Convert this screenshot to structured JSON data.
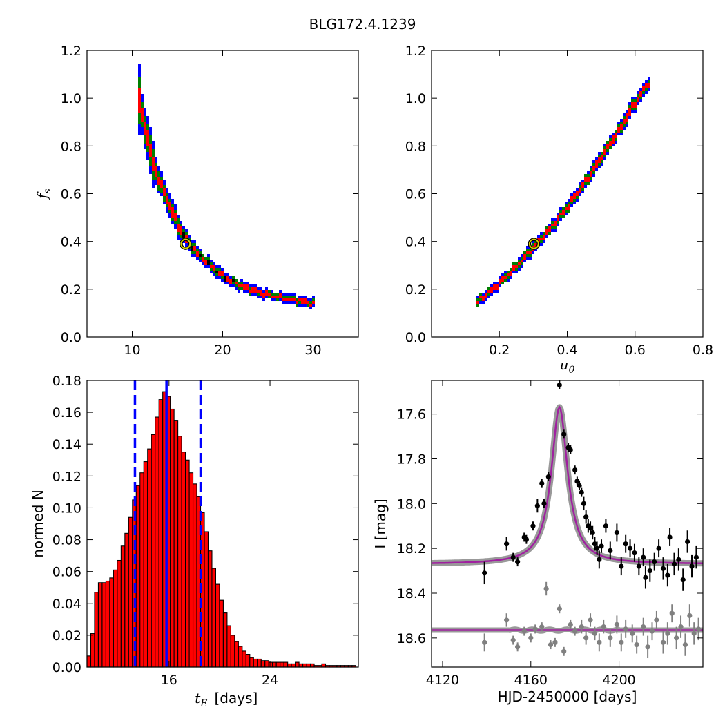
{
  "figure": {
    "title": "BLG172.4.1239"
  },
  "chart_data": [
    {
      "id": "tE_fs",
      "type": "heatmap",
      "xlim": [
        5,
        35
      ],
      "ylim": [
        0,
        1.2
      ],
      "xticks": [
        10,
        20,
        30
      ],
      "yticks": [
        0.0,
        0.2,
        0.4,
        0.6,
        0.8,
        1.0,
        1.2
      ],
      "xlabel": "",
      "ylabel": "f_s",
      "contour_colors": {
        "outer": "#0000ff",
        "middle": "#008000",
        "inner": "#ff0000",
        "core": "#000000"
      },
      "band_centerline": [
        [
          10.4,
          1.06
        ],
        [
          10.8,
          0.95
        ],
        [
          11.5,
          0.84
        ],
        [
          12.2,
          0.72
        ],
        [
          13.0,
          0.64
        ],
        [
          14.0,
          0.55
        ],
        [
          15.0,
          0.46
        ],
        [
          16.0,
          0.4
        ],
        [
          17.0,
          0.35
        ],
        [
          18.5,
          0.3
        ],
        [
          20.0,
          0.25
        ],
        [
          22.0,
          0.21
        ],
        [
          24.5,
          0.18
        ],
        [
          27.0,
          0.16
        ],
        [
          30.0,
          0.14
        ]
      ],
      "best_fit": {
        "x": 15.9,
        "y": 0.39
      }
    },
    {
      "id": "u0_fs",
      "type": "heatmap",
      "xlim": [
        0,
        0.8
      ],
      "ylim": [
        0,
        1.2
      ],
      "xticks": [
        0.2,
        0.4,
        0.6,
        0.8
      ],
      "yticks": [
        0.0,
        0.2,
        0.4,
        0.6,
        0.8,
        1.0,
        1.2
      ],
      "xlabel": "u_0",
      "ylabel": "",
      "contour_colors": {
        "outer": "#0000ff",
        "middle": "#008000",
        "inner": "#ff0000",
        "core": "#000000"
      },
      "band_centerline": [
        [
          0.125,
          0.14
        ],
        [
          0.16,
          0.18
        ],
        [
          0.2,
          0.23
        ],
        [
          0.25,
          0.3
        ],
        [
          0.3,
          0.38
        ],
        [
          0.35,
          0.46
        ],
        [
          0.4,
          0.55
        ],
        [
          0.45,
          0.65
        ],
        [
          0.5,
          0.76
        ],
        [
          0.55,
          0.87
        ],
        [
          0.6,
          0.99
        ],
        [
          0.64,
          1.07
        ]
      ],
      "best_fit": {
        "x": 0.302,
        "y": 0.39
      }
    },
    {
      "id": "tE_hist",
      "type": "bar",
      "xlim": [
        9.5,
        31.0
      ],
      "ylim": [
        0,
        0.18
      ],
      "xticks": [
        16,
        24
      ],
      "yticks": [
        0.0,
        0.02,
        0.04,
        0.06,
        0.08,
        0.1,
        0.12,
        0.14,
        0.16,
        0.18
      ],
      "xlabel_math": "t_E",
      "xlabel": "[days]",
      "ylabel": "normed N",
      "bar_color": "#ff0000",
      "bin_start": 9.5,
      "bin_width": 0.3,
      "values": [
        0.007,
        0.021,
        0.047,
        0.053,
        0.053,
        0.054,
        0.056,
        0.061,
        0.067,
        0.076,
        0.084,
        0.094,
        0.105,
        0.114,
        0.122,
        0.129,
        0.137,
        0.146,
        0.157,
        0.168,
        0.173,
        0.17,
        0.162,
        0.155,
        0.145,
        0.135,
        0.13,
        0.122,
        0.115,
        0.107,
        0.097,
        0.085,
        0.073,
        0.062,
        0.052,
        0.042,
        0.034,
        0.026,
        0.02,
        0.016,
        0.013,
        0.01,
        0.008,
        0.006,
        0.005,
        0.005,
        0.004,
        0.004,
        0.003,
        0.003,
        0.003,
        0.003,
        0.003,
        0.002,
        0.002,
        0.003,
        0.002,
        0.002,
        0.002,
        0.002,
        0.001,
        0.001,
        0.002,
        0.001,
        0.001,
        0.001,
        0.001,
        0.001,
        0.001,
        0.001,
        0.001
      ],
      "vlines": [
        {
          "x": 15.8,
          "style": "solid",
          "color": "#0000ff"
        },
        {
          "x": 13.3,
          "style": "dashed",
          "color": "#0000ff"
        },
        {
          "x": 18.5,
          "style": "dashed",
          "color": "#0000ff"
        }
      ]
    },
    {
      "id": "lightcurve",
      "type": "scatter",
      "xlim": [
        4115,
        4238
      ],
      "ylim": [
        18.73,
        17.45
      ],
      "y_inverted": true,
      "xticks": [
        4120,
        4160,
        4200
      ],
      "yticks": [
        17.6,
        17.8,
        18.0,
        18.2,
        18.4,
        18.6
      ],
      "xlabel": "HJD-2450000 [days]",
      "ylabel": "I [mag]",
      "model": {
        "t0": 4173,
        "base_mag": 18.27,
        "peak_mag": 17.57,
        "width": 4.5,
        "color": "#a020a0"
      },
      "residual_baseline": 18.565,
      "data_points": [
        [
          4139,
          18.31,
          0.05
        ],
        [
          4149,
          18.18,
          0.03
        ],
        [
          4152,
          18.24,
          0.02
        ],
        [
          4154,
          18.26,
          0.02
        ],
        [
          4157,
          18.15,
          0.02
        ],
        [
          4158,
          18.16,
          0.02
        ],
        [
          4161,
          18.1,
          0.02
        ],
        [
          4163,
          18.01,
          0.03
        ],
        [
          4165,
          17.91,
          0.02
        ],
        [
          4166,
          18.0,
          0.02
        ],
        [
          4168,
          17.88,
          0.02
        ],
        [
          4173,
          17.47,
          0.02
        ],
        [
          4175,
          17.69,
          0.02
        ],
        [
          4177,
          17.75,
          0.02
        ],
        [
          4178,
          17.76,
          0.02
        ],
        [
          4180,
          17.85,
          0.02
        ],
        [
          4181,
          17.9,
          0.02
        ],
        [
          4182,
          17.92,
          0.02
        ],
        [
          4183,
          17.95,
          0.02
        ],
        [
          4184,
          18.0,
          0.03
        ],
        [
          4185,
          18.06,
          0.03
        ],
        [
          4186,
          18.1,
          0.03
        ],
        [
          4187,
          18.11,
          0.03
        ],
        [
          4188,
          18.13,
          0.03
        ],
        [
          4189,
          18.18,
          0.03
        ],
        [
          4190,
          18.2,
          0.03
        ],
        [
          4191,
          18.25,
          0.04
        ],
        [
          4192,
          18.19,
          0.03
        ],
        [
          4194,
          18.1,
          0.03
        ],
        [
          4196,
          18.21,
          0.04
        ],
        [
          4199,
          18.13,
          0.04
        ],
        [
          4201,
          18.28,
          0.04
        ],
        [
          4203,
          18.18,
          0.04
        ],
        [
          4205,
          18.2,
          0.04
        ],
        [
          4207,
          18.22,
          0.04
        ],
        [
          4209,
          18.28,
          0.04
        ],
        [
          4211,
          18.24,
          0.04
        ],
        [
          4212,
          18.33,
          0.05
        ],
        [
          4214,
          18.3,
          0.05
        ],
        [
          4216,
          18.26,
          0.04
        ],
        [
          4218,
          18.2,
          0.04
        ],
        [
          4220,
          18.29,
          0.05
        ],
        [
          4222,
          18.32,
          0.05
        ],
        [
          4223,
          18.15,
          0.04
        ],
        [
          4225,
          18.27,
          0.05
        ],
        [
          4227,
          18.25,
          0.05
        ],
        [
          4229,
          18.34,
          0.05
        ],
        [
          4231,
          18.17,
          0.05
        ],
        [
          4233,
          18.28,
          0.05
        ],
        [
          4235,
          18.24,
          0.05
        ]
      ],
      "residual_points": [
        [
          4139,
          18.62,
          0.04
        ],
        [
          4149,
          18.52,
          0.03
        ],
        [
          4152,
          18.61,
          0.02
        ],
        [
          4154,
          18.64,
          0.02
        ],
        [
          4157,
          18.57,
          0.02
        ],
        [
          4160,
          18.6,
          0.02
        ],
        [
          4162,
          18.56,
          0.02
        ],
        [
          4165,
          18.55,
          0.02
        ],
        [
          4167,
          18.38,
          0.03
        ],
        [
          4169,
          18.63,
          0.02
        ],
        [
          4171,
          18.62,
          0.02
        ],
        [
          4173,
          18.47,
          0.02
        ],
        [
          4175,
          18.66,
          0.02
        ],
        [
          4178,
          18.54,
          0.02
        ],
        [
          4180,
          18.57,
          0.02
        ],
        [
          4183,
          18.55,
          0.03
        ],
        [
          4185,
          18.6,
          0.03
        ],
        [
          4187,
          18.52,
          0.03
        ],
        [
          4189,
          18.58,
          0.03
        ],
        [
          4191,
          18.62,
          0.04
        ],
        [
          4193,
          18.55,
          0.03
        ],
        [
          4196,
          18.6,
          0.04
        ],
        [
          4199,
          18.54,
          0.04
        ],
        [
          4201,
          18.62,
          0.04
        ],
        [
          4203,
          18.56,
          0.04
        ],
        [
          4206,
          18.58,
          0.04
        ],
        [
          4208,
          18.63,
          0.04
        ],
        [
          4211,
          18.55,
          0.04
        ],
        [
          4213,
          18.64,
          0.05
        ],
        [
          4215,
          18.57,
          0.04
        ],
        [
          4217,
          18.52,
          0.04
        ],
        [
          4220,
          18.62,
          0.05
        ],
        [
          4222,
          18.58,
          0.05
        ],
        [
          4224,
          18.49,
          0.04
        ],
        [
          4226,
          18.6,
          0.05
        ],
        [
          4228,
          18.55,
          0.05
        ],
        [
          4230,
          18.63,
          0.05
        ],
        [
          4232,
          18.5,
          0.05
        ],
        [
          4234,
          18.58,
          0.05
        ],
        [
          4236,
          18.56,
          0.05
        ]
      ],
      "data_color": "#000000",
      "residual_color": "#808080"
    }
  ]
}
